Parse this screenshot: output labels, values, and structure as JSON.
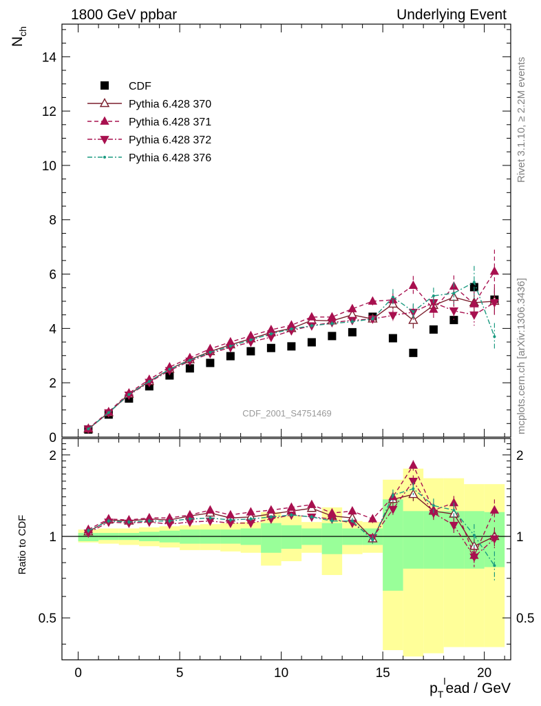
{
  "header": {
    "title_left": "1800 GeV ppbar",
    "title_right": "Underlying Event",
    "side_top": "Rivet 3.1.10, ≥ 2.2M events",
    "side_bottom": "mcplots.cern.ch [arXiv:1306.3436]",
    "watermark": "CDF_2001_S4751469"
  },
  "chart_data": [
    {
      "type": "scatter",
      "panel": "main",
      "ylabel": "N",
      "ylabel_sub": "ch",
      "xlim": [
        -0.8,
        21.3
      ],
      "ylim": [
        0,
        15.2
      ],
      "yticks": [
        0,
        2,
        4,
        6,
        8,
        10,
        12,
        14
      ],
      "x": [
        0.5,
        1.5,
        2.5,
        3.5,
        4.5,
        5.5,
        6.5,
        7.5,
        8.5,
        9.5,
        10.5,
        11.5,
        12.5,
        13.5,
        14.5,
        15.5,
        16.5,
        17.5,
        18.5,
        19.5,
        20.5
      ],
      "legend_position": "top-left",
      "series": [
        {
          "name": "CDF",
          "color": "#000000",
          "marker": "square",
          "line": "none",
          "values": [
            0.28,
            0.83,
            1.42,
            1.87,
            2.27,
            2.53,
            2.73,
            2.98,
            3.16,
            3.28,
            3.34,
            3.49,
            3.72,
            3.86,
            4.43,
            3.64,
            3.1,
            3.96,
            4.31,
            5.52,
            5.06
          ]
        },
        {
          "name": "Pythia 6.428 370",
          "color": "#7b1f2d",
          "marker": "triangle-up-open",
          "line": "solid",
          "values": [
            0.3,
            0.9,
            1.58,
            2.05,
            2.5,
            2.85,
            3.15,
            3.4,
            3.62,
            3.85,
            4.0,
            4.3,
            4.28,
            4.5,
            4.35,
            4.9,
            4.3,
            4.85,
            5.15,
            4.95,
            5.0
          ],
          "errors": [
            0.02,
            0.02,
            0.03,
            0.03,
            0.03,
            0.04,
            0.04,
            0.05,
            0.05,
            0.06,
            0.06,
            0.07,
            0.08,
            0.1,
            0.12,
            0.2,
            0.3,
            0.3,
            0.35,
            0.4,
            0.5
          ]
        },
        {
          "name": "Pythia 6.428 371",
          "color": "#a8104f",
          "marker": "triangle-up",
          "line": "dashed",
          "values": [
            0.32,
            0.93,
            1.62,
            2.12,
            2.58,
            2.92,
            3.25,
            3.5,
            3.73,
            3.95,
            4.12,
            4.42,
            4.42,
            4.72,
            5.0,
            5.05,
            5.58,
            4.7,
            5.55,
            4.9,
            6.1
          ],
          "errors": [
            0.02,
            0.02,
            0.03,
            0.03,
            0.03,
            0.04,
            0.04,
            0.05,
            0.05,
            0.06,
            0.06,
            0.07,
            0.08,
            0.12,
            0.15,
            0.25,
            0.35,
            0.35,
            0.4,
            0.5,
            0.8
          ]
        },
        {
          "name": "Pythia 6.428 372",
          "color": "#a8104f",
          "marker": "triangle-down",
          "line": "dashdot",
          "values": [
            0.3,
            0.9,
            1.55,
            2.02,
            2.45,
            2.8,
            3.08,
            3.3,
            3.5,
            3.68,
            3.92,
            4.1,
            4.22,
            4.3,
            4.35,
            4.48,
            4.6,
            4.95,
            4.65,
            4.5,
            4.95
          ],
          "errors": [
            0.02,
            0.02,
            0.03,
            0.03,
            0.03,
            0.04,
            0.04,
            0.05,
            0.05,
            0.06,
            0.06,
            0.07,
            0.08,
            0.1,
            0.12,
            0.2,
            0.28,
            0.3,
            0.35,
            0.4,
            0.5
          ]
        },
        {
          "name": "Pythia 6.428 376",
          "color": "#1a9a80",
          "marker": "dot",
          "line": "dashdot",
          "values": [
            0.3,
            0.9,
            1.57,
            2.05,
            2.5,
            2.83,
            3.12,
            3.35,
            3.58,
            3.8,
            3.98,
            4.1,
            4.18,
            4.25,
            4.35,
            5.15,
            4.62,
            5.2,
            5.3,
            5.7,
            3.7
          ],
          "errors": [
            0.02,
            0.02,
            0.03,
            0.03,
            0.03,
            0.04,
            0.04,
            0.05,
            0.05,
            0.06,
            0.06,
            0.07,
            0.08,
            0.1,
            0.12,
            0.3,
            0.3,
            0.3,
            0.4,
            0.6,
            0.5
          ]
        }
      ]
    },
    {
      "type": "scatter",
      "panel": "ratio",
      "ylabel": "Ratio to CDF",
      "xlabel_pre": "p",
      "xlabel_sub": "T",
      "xlabel_sup": "l",
      "xlabel_post": "ead / GeV",
      "xlim": [
        -0.8,
        21.3
      ],
      "ylim": [
        0.35,
        2.3
      ],
      "yticks": [
        0.5,
        1,
        2
      ],
      "xticks": [
        0,
        5,
        10,
        15,
        20
      ],
      "reference_line": 1,
      "x": [
        0.5,
        1.5,
        2.5,
        3.5,
        4.5,
        5.5,
        6.5,
        7.5,
        8.5,
        9.5,
        10.5,
        11.5,
        12.5,
        13.5,
        14.5,
        15.5,
        16.5,
        17.5,
        18.5,
        19.5,
        20.5
      ],
      "bands": {
        "yellow": {
          "color": "#ffff99",
          "low": [
            0.95,
            0.94,
            0.93,
            0.92,
            0.91,
            0.89,
            0.89,
            0.88,
            0.87,
            0.78,
            0.81,
            0.87,
            0.72,
            0.86,
            0.87,
            0.38,
            0.36,
            0.37,
            0.39,
            0.39,
            0.39
          ],
          "high": [
            1.06,
            1.07,
            1.07,
            1.08,
            1.09,
            1.1,
            1.11,
            1.12,
            1.13,
            1.23,
            1.19,
            1.13,
            1.28,
            1.14,
            1.13,
            1.62,
            1.78,
            1.64,
            1.64,
            1.56,
            1.56
          ]
        },
        "green": {
          "color": "#99ff99",
          "low": [
            0.96,
            0.97,
            0.97,
            0.96,
            0.95,
            0.94,
            0.94,
            0.94,
            0.93,
            0.87,
            0.9,
            0.93,
            0.86,
            0.93,
            0.93,
            0.63,
            0.76,
            0.76,
            0.76,
            0.76,
            0.77
          ],
          "high": [
            1.03,
            1.03,
            1.03,
            1.04,
            1.05,
            1.06,
            1.06,
            1.06,
            1.07,
            1.12,
            1.1,
            1.07,
            1.12,
            1.07,
            1.07,
            1.37,
            1.24,
            1.24,
            1.24,
            1.24,
            1.23
          ]
        }
      },
      "series": [
        {
          "name": "Pythia 6.428 370",
          "color": "#7b1f2d",
          "marker": "triangle-up-open",
          "line": "solid",
          "values": [
            1.04,
            1.15,
            1.14,
            1.16,
            1.15,
            1.19,
            1.22,
            1.17,
            1.18,
            1.21,
            1.24,
            1.27,
            1.19,
            1.17,
            0.98,
            1.37,
            1.43,
            1.24,
            1.21,
            0.92,
            1.0
          ],
          "errors": [
            0.02,
            0.02,
            0.02,
            0.02,
            0.02,
            0.02,
            0.02,
            0.02,
            0.02,
            0.02,
            0.02,
            0.02,
            0.03,
            0.03,
            0.04,
            0.06,
            0.08,
            0.07,
            0.07,
            0.07,
            0.08
          ]
        },
        {
          "name": "Pythia 6.428 371",
          "color": "#a8104f",
          "marker": "triangle-up",
          "line": "dashed",
          "values": [
            1.06,
            1.16,
            1.15,
            1.17,
            1.17,
            1.2,
            1.25,
            1.2,
            1.23,
            1.25,
            1.28,
            1.31,
            1.22,
            1.24,
            1.16,
            1.4,
            1.83,
            1.25,
            1.33,
            0.85,
            1.25
          ],
          "errors": [
            0.02,
            0.02,
            0.02,
            0.02,
            0.02,
            0.02,
            0.02,
            0.02,
            0.02,
            0.02,
            0.02,
            0.02,
            0.03,
            0.03,
            0.04,
            0.06,
            0.08,
            0.08,
            0.08,
            0.08,
            0.12
          ]
        },
        {
          "name": "Pythia 6.428 372",
          "color": "#a8104f",
          "marker": "triangle-down",
          "line": "dashdot",
          "values": [
            1.03,
            1.13,
            1.12,
            1.13,
            1.11,
            1.13,
            1.14,
            1.12,
            1.12,
            1.16,
            1.2,
            1.18,
            1.16,
            1.12,
            0.99,
            1.26,
            1.6,
            1.22,
            1.1,
            0.84,
            0.98
          ],
          "errors": [
            0.02,
            0.02,
            0.02,
            0.02,
            0.02,
            0.02,
            0.02,
            0.02,
            0.02,
            0.02,
            0.02,
            0.02,
            0.03,
            0.03,
            0.04,
            0.06,
            0.08,
            0.07,
            0.07,
            0.07,
            0.08
          ]
        },
        {
          "name": "Pythia 6.428 376",
          "color": "#1a9a80",
          "marker": "dot",
          "line": "dashdot",
          "values": [
            1.05,
            1.14,
            1.13,
            1.14,
            1.14,
            1.16,
            1.17,
            1.15,
            1.16,
            1.18,
            1.2,
            1.18,
            1.14,
            1.14,
            0.97,
            1.42,
            1.5,
            1.3,
            1.25,
            1.01,
            0.78
          ],
          "errors": [
            0.02,
            0.02,
            0.02,
            0.02,
            0.02,
            0.02,
            0.02,
            0.02,
            0.02,
            0.02,
            0.02,
            0.02,
            0.03,
            0.03,
            0.04,
            0.07,
            0.08,
            0.08,
            0.08,
            0.1,
            0.1
          ]
        }
      ]
    }
  ]
}
